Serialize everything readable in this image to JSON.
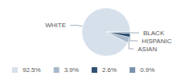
{
  "chart_data": {
    "type": "pie",
    "categories": [
      "WHITE",
      "ASIAN",
      "HISPANIC",
      "BLACK"
    ],
    "values": [
      92.5,
      3.9,
      2.6,
      0.9
    ],
    "value_labels": [
      "92.5%",
      "3.9%",
      "2.6%",
      "0.9%"
    ],
    "colors": [
      "#d6e0ea",
      "#a6b9cc",
      "#2f5070",
      "#7893ad"
    ],
    "legend": "bottom"
  }
}
